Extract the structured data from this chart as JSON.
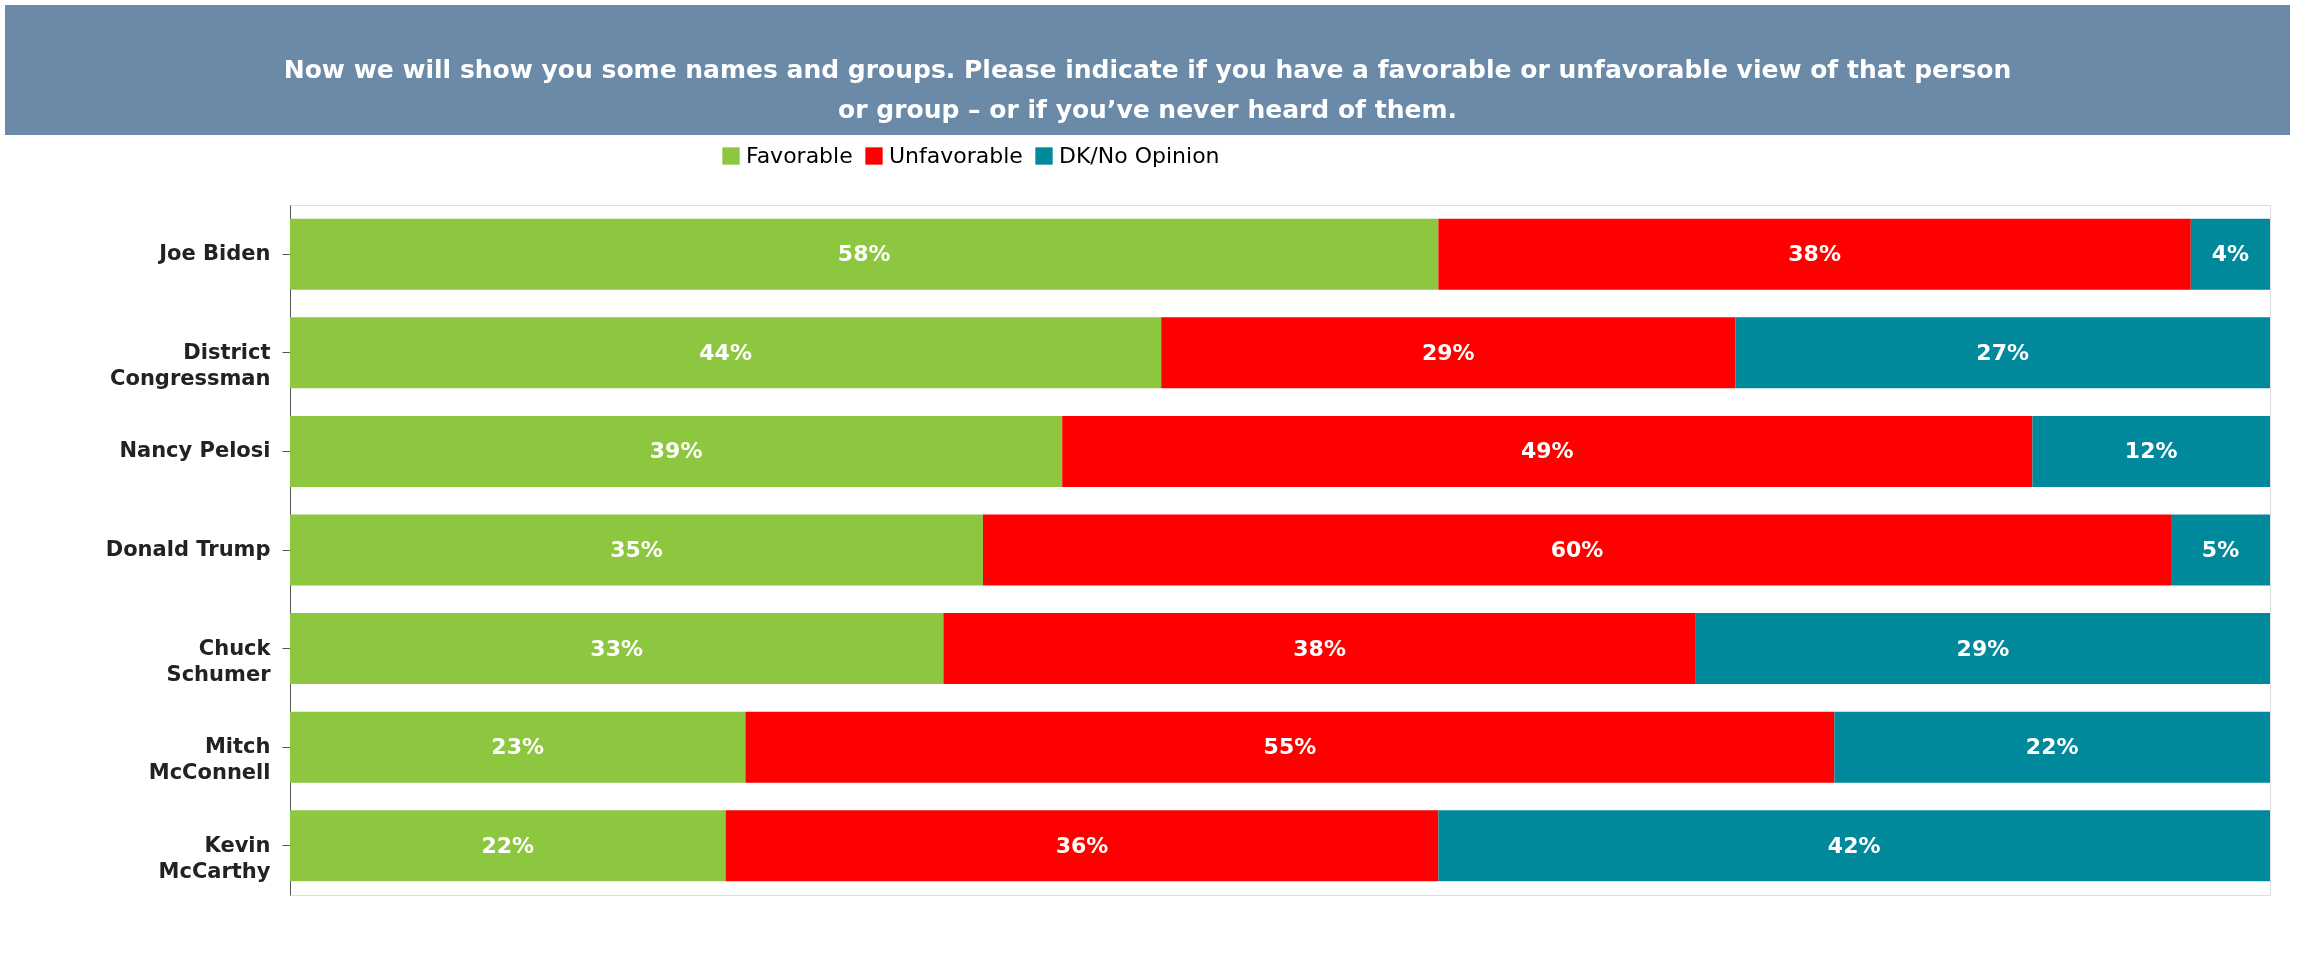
{
  "chart_data": {
    "type": "bar",
    "orientation": "horizontal",
    "stacked": true,
    "title": "Now we will show you some names and groups. Please indicate if you have a favorable or unfavorable view of that person or group – or if you’ve never heard of them.",
    "categories": [
      "Joe Biden",
      "District\nCongressman",
      "Nancy Pelosi",
      "Donald Trump",
      "Chuck\nSchumer",
      "Mitch\nMcConnell",
      "Kevin\nMcCarthy"
    ],
    "series": [
      {
        "name": "Favorable",
        "color": "#8dc63f",
        "values": [
          58,
          44,
          39,
          35,
          33,
          23,
          22
        ],
        "value_labels": [
          "58%",
          "44%",
          "39%",
          "35%",
          "33%",
          "23%",
          "22%"
        ]
      },
      {
        "name": "Unfavorable",
        "color": "#ff0000",
        "values": [
          38,
          29,
          49,
          60,
          38,
          55,
          36
        ],
        "value_labels": [
          "38%",
          "29%",
          "49%",
          "60%",
          "38%",
          "55%",
          "36%"
        ]
      },
      {
        "name": "DK/No Opinion",
        "color": "#00899b",
        "values": [
          4,
          27,
          12,
          5,
          29,
          22,
          42
        ],
        "value_labels": [
          "4%",
          "27%",
          "12%",
          "5%",
          "29%",
          "22%",
          "42%"
        ]
      }
    ],
    "legend": "top",
    "grid": false
  }
}
